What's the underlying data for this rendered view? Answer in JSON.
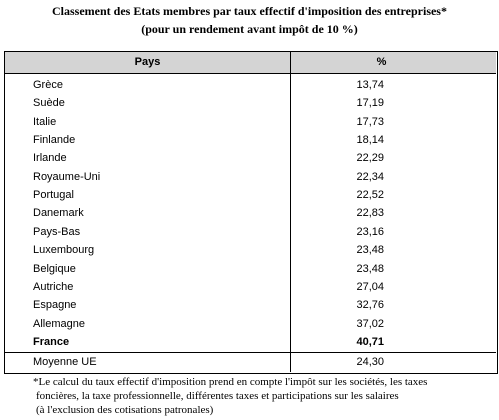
{
  "header": {
    "title": "Classement des Etats membres par taux effectif d'imposition des entreprises*",
    "subtitle": "(pour un rendement avant impôt de 10 %)"
  },
  "table": {
    "columns": [
      "Pays",
      "%"
    ],
    "rows": [
      [
        "Grèce",
        "13,74"
      ],
      [
        "Suède",
        "17,19"
      ],
      [
        "Italie",
        "17,73"
      ],
      [
        "Finlande",
        "18,14"
      ],
      [
        "Irlande",
        "22,29"
      ],
      [
        "Royaume-Uni",
        "22,34"
      ],
      [
        "Portugal",
        "22,52"
      ],
      [
        "Danemark",
        "22,83"
      ],
      [
        "Pays-Bas",
        "23,16"
      ],
      [
        "Luxembourg",
        "23,48"
      ],
      [
        "Belgique",
        "23,48"
      ],
      [
        "Autriche",
        "27,04"
      ],
      [
        "Espagne",
        "32,76"
      ],
      [
        "Allemagne",
        "37,02"
      ]
    ],
    "highlight": [
      "France",
      "40,71"
    ],
    "average": [
      "Moyenne UE",
      "24,30"
    ]
  },
  "footnote": [
    "*Le calcul du taux effectif d'imposition prend en compte l'impôt sur les sociétés, les taxes",
    "foncières, la taxe professionnelle, différentes taxes et participations sur les salaires",
    "(à l'exclusion des cotisations patronales)"
  ]
}
